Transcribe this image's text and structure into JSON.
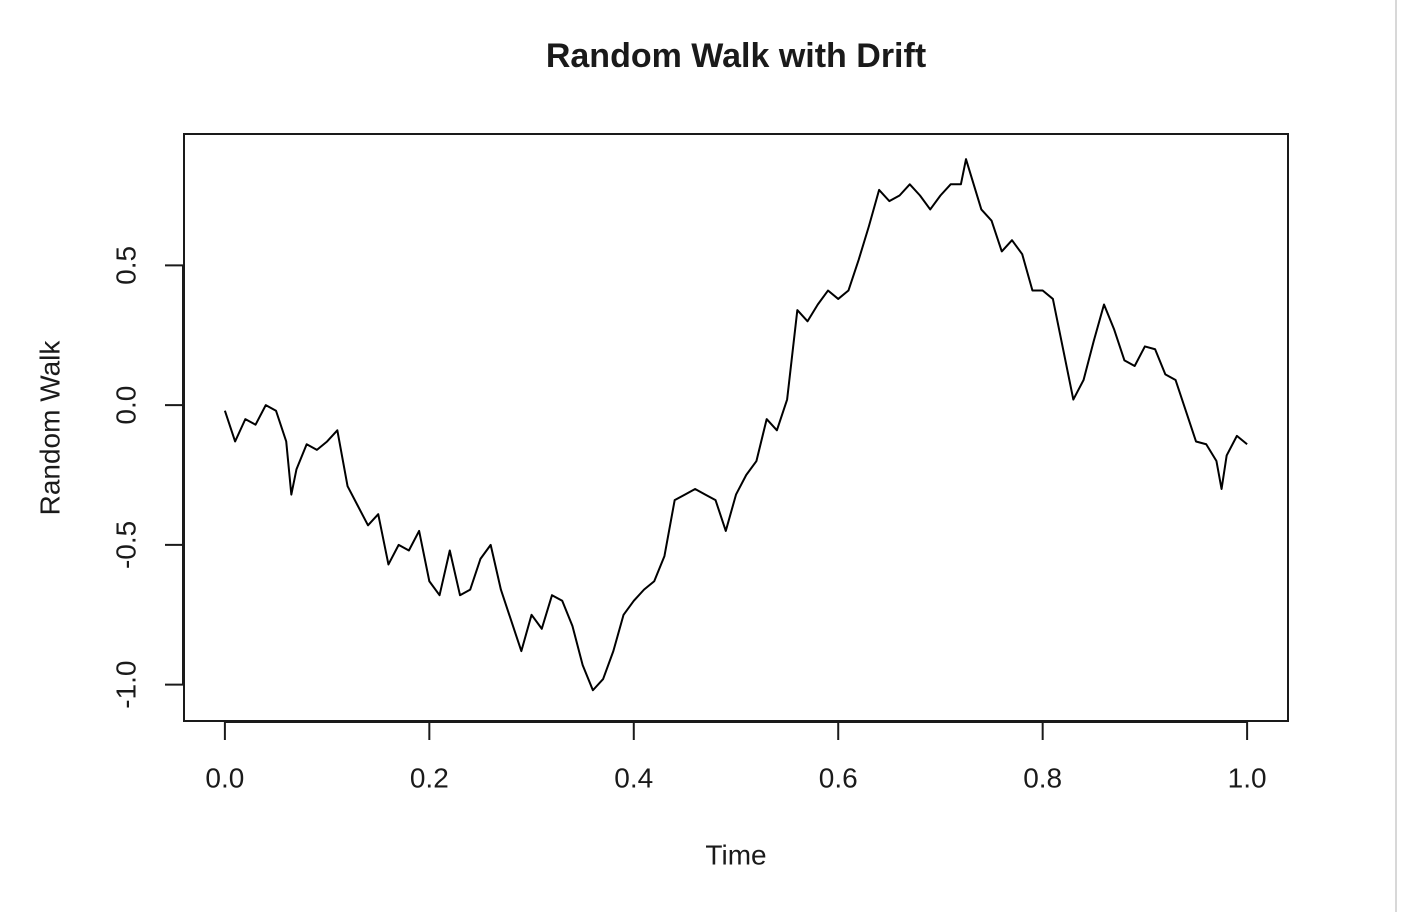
{
  "chart_data": {
    "type": "line",
    "title": "Random Walk with Drift",
    "x_label": "Time",
    "y_label": "Random Walk",
    "color": "#000000",
    "xlim": [
      -0.04,
      1.04
    ],
    "ylim": [
      -1.13,
      0.97
    ],
    "xticks": [
      {
        "value": 0,
        "label": "0.0"
      },
      {
        "value": 0.2,
        "label": "0.2"
      },
      {
        "value": 0.4,
        "label": "0.4"
      },
      {
        "value": 0.6,
        "label": "0.6"
      },
      {
        "value": 0.8,
        "label": "0.8"
      },
      {
        "value": 1,
        "label": "1.0"
      }
    ],
    "yticks": [
      {
        "value": -1,
        "label": "-1.0"
      },
      -0.5,
      {
        "value": 0,
        "label": "0.0"
      },
      0.5
    ],
    "x": [
      0,
      0.01,
      0.02,
      0.03,
      0.04,
      0.05,
      0.06,
      0.065,
      0.07,
      0.08,
      0.09,
      0.1,
      0.11,
      0.12,
      0.13,
      0.14,
      0.15,
      0.16,
      0.17,
      0.18,
      0.19,
      0.2,
      0.21,
      0.22,
      0.23,
      0.24,
      0.25,
      0.26,
      0.27,
      0.28,
      0.29,
      0.3,
      0.31,
      0.32,
      0.33,
      0.34,
      0.35,
      0.36,
      0.37,
      0.38,
      0.39,
      0.4,
      0.41,
      0.42,
      0.43,
      0.44,
      0.45,
      0.46,
      0.47,
      0.48,
      0.49,
      0.5,
      0.51,
      0.52,
      0.53,
      0.54,
      0.55,
      0.56,
      0.57,
      0.58,
      0.59,
      0.6,
      0.61,
      0.62,
      0.63,
      0.64,
      0.65,
      0.66,
      0.67,
      0.68,
      0.69,
      0.7,
      0.71,
      0.72,
      0.725,
      0.73,
      0.74,
      0.75,
      0.76,
      0.77,
      0.78,
      0.79,
      0.8,
      0.81,
      0.82,
      0.83,
      0.84,
      0.85,
      0.86,
      0.87,
      0.88,
      0.89,
      0.9,
      0.91,
      0.92,
      0.93,
      0.94,
      0.95,
      0.96,
      0.97,
      0.975,
      0.98,
      0.99,
      1
    ],
    "values": [
      -0.02,
      -0.13,
      -0.05,
      -0.07,
      0.0,
      -0.02,
      -0.13,
      -0.32,
      -0.23,
      -0.14,
      -0.16,
      -0.13,
      -0.09,
      -0.29,
      -0.36,
      -0.43,
      -0.39,
      -0.57,
      -0.5,
      -0.52,
      -0.45,
      -0.63,
      -0.68,
      -0.52,
      -0.68,
      -0.66,
      -0.55,
      -0.5,
      -0.66,
      -0.77,
      -0.88,
      -0.75,
      -0.8,
      -0.68,
      -0.7,
      -0.79,
      -0.93,
      -1.02,
      -0.98,
      -0.88,
      -0.75,
      -0.7,
      -0.66,
      -0.63,
      -0.54,
      -0.34,
      -0.32,
      -0.3,
      -0.32,
      -0.34,
      -0.45,
      -0.32,
      -0.25,
      -0.2,
      -0.05,
      -0.09,
      0.02,
      0.34,
      0.3,
      0.36,
      0.41,
      0.38,
      0.41,
      0.52,
      0.64,
      0.77,
      0.73,
      0.75,
      0.79,
      0.75,
      0.7,
      0.75,
      0.79,
      0.79,
      0.88,
      0.82,
      0.7,
      0.66,
      0.55,
      0.59,
      0.54,
      0.41,
      0.41,
      0.38,
      0.2,
      0.02,
      0.09,
      0.23,
      0.36,
      0.27,
      0.16,
      0.14,
      0.21,
      0.2,
      0.11,
      0.09,
      -0.02,
      -0.13,
      -0.14,
      -0.2,
      -0.3,
      -0.18,
      -0.11,
      -0.14
    ]
  }
}
